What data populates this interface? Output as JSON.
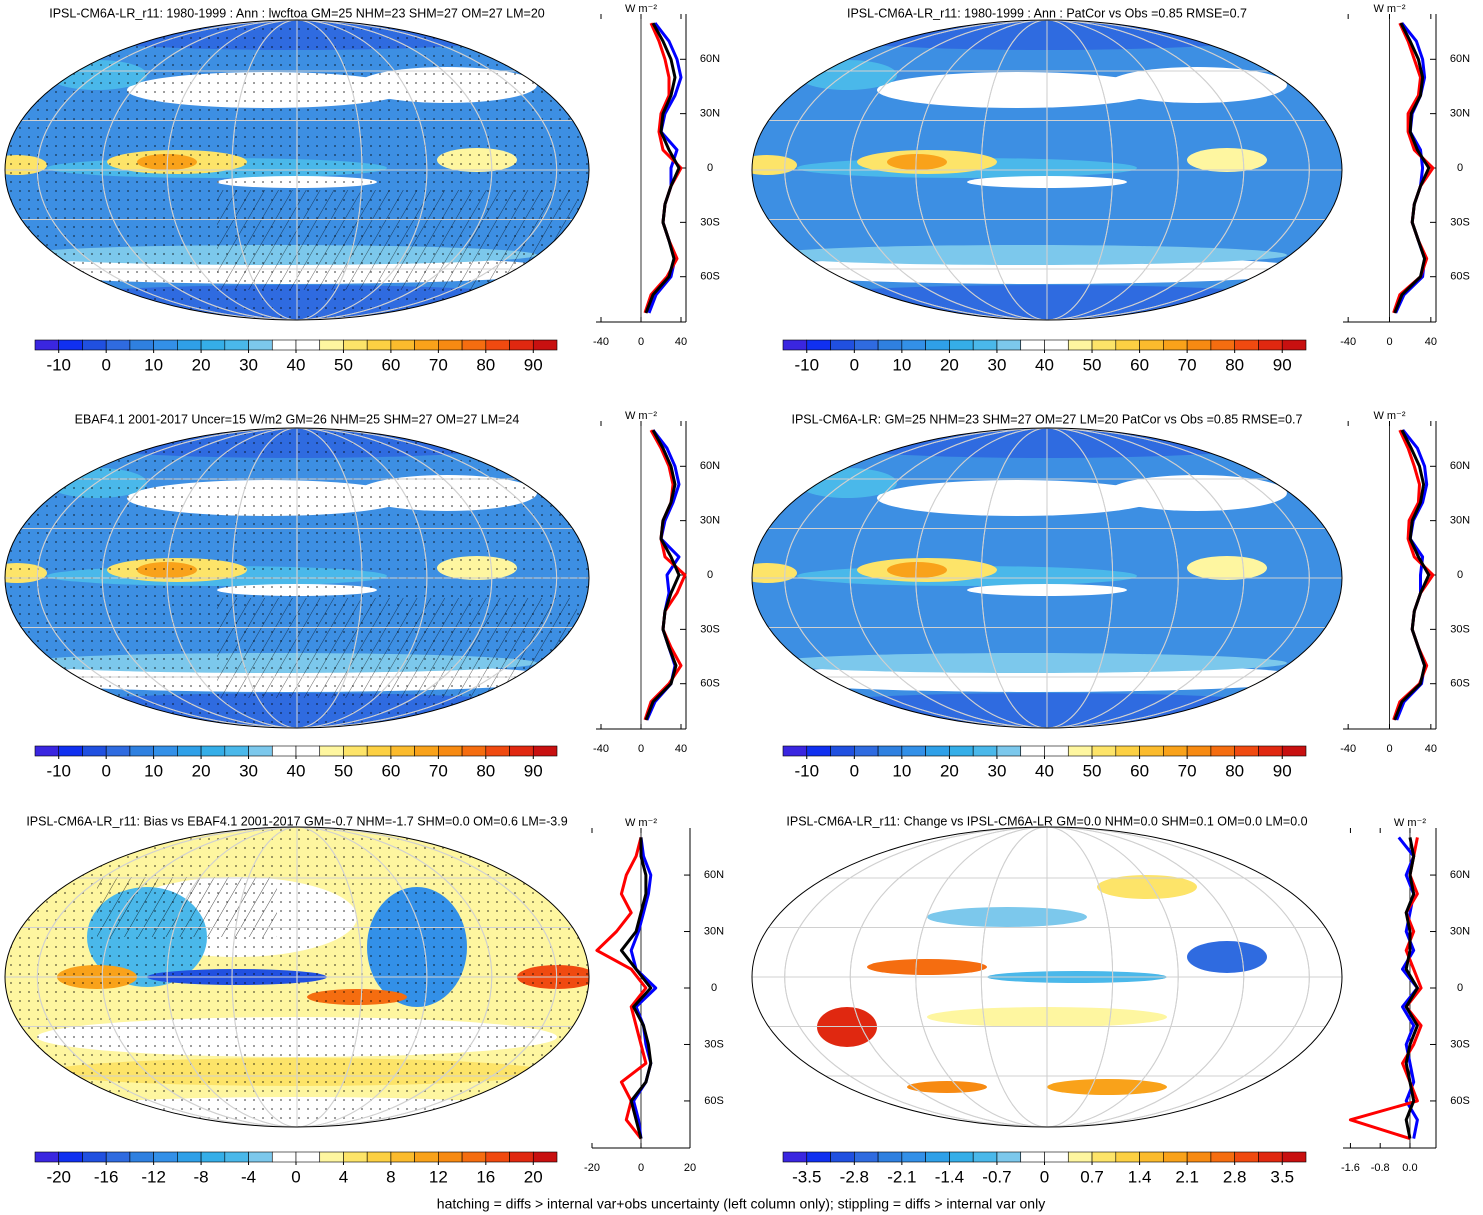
{
  "chart_data": [
    {
      "type": "map",
      "title": "IPSL-CM6A-LR_r11: 1980-1999 : Ann : lwcftoa GM=25 NHM=23 SHM=27 OM=27 LM=20",
      "style": "climate",
      "colorbar": {
        "xlim": [
          -15,
          95
        ],
        "xticks": [
          -10,
          0,
          10,
          20,
          30,
          40,
          50,
          60,
          70,
          80,
          90
        ],
        "colors": [
          "#3a26e0",
          "#1030f0",
          "#2050e0",
          "#2f6be0",
          "#2f80e0",
          "#3390e8",
          "#2fa0e8",
          "#35aee8",
          "#4ab8ea",
          "#7cc8ec",
          "#ffffff",
          "#ffffff",
          "#fef6a0",
          "#fde469",
          "#fcd043",
          "#fbbb2d",
          "#f9a21a",
          "#f78a12",
          "#f56d10",
          "#f04a10",
          "#e02810",
          "#c81010"
        ]
      },
      "zonal": {
        "type": "line",
        "xlabel": "W m⁻²",
        "xlim": [
          -45,
          45
        ],
        "xticks": [
          -40,
          0,
          40
        ],
        "ylim": [
          -85,
          85
        ],
        "yticks": [
          {
            "value": 60,
            "label": "60N"
          },
          {
            "value": 30,
            "label": "30N"
          },
          0,
          {
            "value": -30,
            "label": "30S"
          },
          {
            "value": -60,
            "label": "60S"
          }
        ],
        "lat": [
          -80,
          -70,
          -60,
          -50,
          -40,
          -30,
          -20,
          -10,
          0,
          10,
          20,
          30,
          40,
          50,
          60,
          70,
          80
        ],
        "series": [
          {
            "color": "#0000ff",
            "values": [
              8,
              15,
              30,
              34,
              28,
              22,
              24,
              30,
              30,
              36,
              20,
              24,
              34,
              40,
              36,
              28,
              14
            ]
          },
          {
            "color": "#ff0000",
            "values": [
              4,
              10,
              26,
              36,
              28,
              22,
              24,
              30,
              40,
              22,
              18,
              20,
              28,
              28,
              24,
              18,
              10
            ]
          },
          {
            "color": "#000000",
            "values": [
              5,
              12,
              28,
              33,
              28,
              22,
              24,
              30,
              38,
              28,
              20,
              22,
              30,
              34,
              30,
              22,
              12
            ]
          }
        ]
      }
    },
    {
      "type": "map",
      "title": "IPSL-CM6A-LR_r11: 1980-1999 : Ann : PatCor vs Obs =0.85 RMSE=0.7",
      "style": "climate",
      "colorbar": {
        "xlim": [
          -15,
          95
        ],
        "xticks": [
          -10,
          0,
          10,
          20,
          30,
          40,
          50,
          60,
          70,
          80,
          90
        ],
        "colors": [
          "#3a26e0",
          "#1030f0",
          "#2050e0",
          "#2f6be0",
          "#2f80e0",
          "#3390e8",
          "#2fa0e8",
          "#35aee8",
          "#4ab8ea",
          "#7cc8ec",
          "#ffffff",
          "#ffffff",
          "#fef6a0",
          "#fde469",
          "#fcd043",
          "#fbbb2d",
          "#f9a21a",
          "#f78a12",
          "#f56d10",
          "#f04a10",
          "#e02810",
          "#c81010"
        ]
      },
      "zonal": {
        "type": "line",
        "xlabel": "W m⁻²",
        "xlim": [
          -45,
          45
        ],
        "xticks": [
          -40,
          0,
          40
        ],
        "ylim": [
          -85,
          85
        ],
        "yticks": [
          {
            "value": 60,
            "label": "60N"
          },
          {
            "value": 30,
            "label": "30N"
          },
          0,
          {
            "value": -30,
            "label": "30S"
          },
          {
            "value": -60,
            "label": "60S"
          }
        ],
        "lat": [
          -80,
          -70,
          -60,
          -50,
          -40,
          -30,
          -20,
          -10,
          0,
          10,
          20,
          30,
          40,
          50,
          60,
          70,
          80
        ],
        "series": [
          {
            "color": "#0000ff",
            "values": [
              6,
              14,
              32,
              34,
              28,
              22,
              24,
              30,
              32,
              30,
              20,
              22,
              30,
              34,
              32,
              26,
              12
            ]
          },
          {
            "color": "#ff0000",
            "values": [
              4,
              10,
              30,
              36,
              28,
              22,
              24,
              30,
              42,
              24,
              18,
              18,
              28,
              30,
              24,
              18,
              10
            ]
          },
          {
            "color": "#000000",
            "values": [
              5,
              12,
              30,
              34,
              28,
              22,
              24,
              30,
              38,
              27,
              20,
              21,
              30,
              32,
              28,
              20,
              11
            ]
          }
        ]
      }
    },
    {
      "type": "map",
      "title": "EBAF4.1 2001-2017 Uncer=15 W/m2 GM=26 NHM=25 SHM=27 OM=27 LM=24",
      "style": "climate",
      "colorbar": {
        "xlim": [
          -15,
          95
        ],
        "xticks": [
          -10,
          0,
          10,
          20,
          30,
          40,
          50,
          60,
          70,
          80,
          90
        ],
        "colors": [
          "#3a26e0",
          "#1030f0",
          "#2050e0",
          "#2f6be0",
          "#2f80e0",
          "#3390e8",
          "#2fa0e8",
          "#35aee8",
          "#4ab8ea",
          "#7cc8ec",
          "#ffffff",
          "#ffffff",
          "#fef6a0",
          "#fde469",
          "#fcd043",
          "#fbbb2d",
          "#f9a21a",
          "#f78a12",
          "#f56d10",
          "#f04a10",
          "#e02810",
          "#c81010"
        ]
      },
      "zonal": {
        "type": "line",
        "xlabel": "W m⁻²",
        "xlim": [
          -45,
          45
        ],
        "xticks": [
          -40,
          0,
          40
        ],
        "ylim": [
          -85,
          85
        ],
        "yticks": [
          {
            "value": 60,
            "label": "60N"
          },
          {
            "value": 30,
            "label": "30N"
          },
          0,
          {
            "value": -30,
            "label": "30S"
          },
          {
            "value": -60,
            "label": "60S"
          }
        ],
        "lat": [
          -80,
          -70,
          -60,
          -50,
          -40,
          -30,
          -20,
          -10,
          0,
          10,
          20,
          30,
          40,
          50,
          60,
          70,
          80
        ],
        "series": [
          {
            "color": "#0000ff",
            "values": [
              6,
              14,
              30,
              34,
              28,
              22,
              24,
              28,
              26,
              38,
              20,
              24,
              32,
              38,
              34,
              26,
              12
            ]
          },
          {
            "color": "#ff0000",
            "values": [
              4,
              10,
              28,
              40,
              30,
              22,
              24,
              36,
              44,
              24,
              20,
              22,
              30,
              32,
              28,
              20,
              10
            ]
          },
          {
            "color": "#000000",
            "values": [
              5,
              12,
              30,
              35,
              28,
              22,
              24,
              30,
              38,
              30,
              20,
              22,
              30,
              34,
              30,
              22,
              12
            ]
          }
        ]
      }
    },
    {
      "type": "map",
      "title": "IPSL-CM6A-LR: GM=25 NHM=23 SHM=27 OM=27 LM=20 PatCor vs Obs =0.85 RMSE=0.7",
      "style": "climate",
      "colorbar": {
        "xlim": [
          -15,
          95
        ],
        "xticks": [
          -10,
          0,
          10,
          20,
          30,
          40,
          50,
          60,
          70,
          80,
          90
        ],
        "colors": [
          "#3a26e0",
          "#1030f0",
          "#2050e0",
          "#2f6be0",
          "#2f80e0",
          "#3390e8",
          "#2fa0e8",
          "#35aee8",
          "#4ab8ea",
          "#7cc8ec",
          "#ffffff",
          "#ffffff",
          "#fef6a0",
          "#fde469",
          "#fcd043",
          "#fbbb2d",
          "#f9a21a",
          "#f78a12",
          "#f56d10",
          "#f04a10",
          "#e02810",
          "#c81010"
        ]
      },
      "zonal": {
        "type": "line",
        "xlabel": "W m⁻²",
        "xlim": [
          -45,
          45
        ],
        "xticks": [
          -40,
          0,
          40
        ],
        "ylim": [
          -85,
          85
        ],
        "yticks": [
          {
            "value": 60,
            "label": "60N"
          },
          {
            "value": 30,
            "label": "30N"
          },
          0,
          {
            "value": -30,
            "label": "30S"
          },
          {
            "value": -60,
            "label": "60S"
          }
        ],
        "lat": [
          -80,
          -70,
          -60,
          -50,
          -40,
          -30,
          -20,
          -10,
          0,
          10,
          20,
          30,
          40,
          50,
          60,
          70,
          80
        ],
        "series": [
          {
            "color": "#0000ff",
            "values": [
              7,
              14,
              31,
              34,
              28,
              22,
              24,
              30,
              30,
              32,
              20,
              23,
              32,
              36,
              34,
              27,
              13
            ]
          },
          {
            "color": "#ff0000",
            "values": [
              4,
              10,
              29,
              36,
              28,
              22,
              24,
              30,
              42,
              24,
              18,
              19,
              28,
              29,
              24,
              18,
              10
            ]
          },
          {
            "color": "#000000",
            "values": [
              5,
              12,
              30,
              34,
              28,
              22,
              24,
              30,
              38,
              28,
              20,
              22,
              30,
              33,
              29,
              21,
              12
            ]
          }
        ]
      }
    },
    {
      "type": "map",
      "title": "IPSL-CM6A-LR_r11: Bias vs EBAF4.1 2001-2017 GM=-0.7 NHM=-1.7 SHM=0.0 OM=0.6 LM=-3.9",
      "style": "bias",
      "colorbar": {
        "xlim": [
          -22,
          22
        ],
        "xticks": [
          -20,
          -16,
          -12,
          -8,
          -4,
          0,
          4,
          8,
          12,
          16,
          20
        ],
        "colors": [
          "#3a26e0",
          "#1030f0",
          "#2050e0",
          "#2f6be0",
          "#2f80e0",
          "#3390e8",
          "#2fa0e8",
          "#35aee8",
          "#4ab8ea",
          "#7cc8ec",
          "#ffffff",
          "#ffffff",
          "#fef6a0",
          "#fde469",
          "#fcd043",
          "#fbbb2d",
          "#f9a21a",
          "#f78a12",
          "#f56d10",
          "#f04a10",
          "#e02810",
          "#c81010"
        ]
      },
      "zonal": {
        "type": "line",
        "xlabel": "W m⁻²",
        "xlim": [
          -20,
          20
        ],
        "xticks": [
          -20,
          0,
          20
        ],
        "ylim": [
          -85,
          85
        ],
        "yticks": [
          {
            "value": 60,
            "label": "60N"
          },
          {
            "value": 30,
            "label": "30N"
          },
          0,
          {
            "value": -30,
            "label": "30S"
          },
          {
            "value": -60,
            "label": "60S"
          }
        ],
        "lat": [
          -80,
          -70,
          -60,
          -50,
          -40,
          -30,
          -20,
          -10,
          0,
          10,
          20,
          30,
          40,
          50,
          60,
          70,
          80
        ],
        "series": [
          {
            "color": "#0000ff",
            "values": [
              0,
              -1,
              -3,
              2,
              4,
              2,
              1,
              -2,
              6,
              -2,
              -4,
              -1,
              1,
              3,
              4,
              1,
              0
            ]
          },
          {
            "color": "#ff0000",
            "values": [
              0,
              -6,
              -4,
              -8,
              2,
              0,
              -2,
              -4,
              2,
              -4,
              -18,
              -10,
              -4,
              -8,
              -6,
              -2,
              0
            ]
          },
          {
            "color": "#000000",
            "values": [
              0,
              -2,
              -4,
              2,
              4,
              3,
              1,
              -3,
              4,
              -2,
              -8,
              -2,
              0,
              2,
              2,
              0,
              0
            ]
          }
        ]
      }
    },
    {
      "type": "map",
      "title": "IPSL-CM6A-LR_r11: Change vs IPSL-CM6A-LR GM=0.0 NHM=0.0 SHM=0.1 OM=0.0 LM=0.0",
      "style": "change",
      "colorbar": {
        "xlim": [
          -3.85,
          3.85
        ],
        "xticks": [
          -3.5,
          -2.8,
          -2.1,
          -1.4,
          -0.7,
          0,
          0.7,
          1.4,
          2.1,
          2.8,
          3.5
        ],
        "colors": [
          "#3a26e0",
          "#1030f0",
          "#2050e0",
          "#2f6be0",
          "#2f80e0",
          "#3390e8",
          "#2fa0e8",
          "#35aee8",
          "#4ab8ea",
          "#7cc8ec",
          "#ffffff",
          "#ffffff",
          "#fef6a0",
          "#fde469",
          "#fcd043",
          "#fbbb2d",
          "#f9a21a",
          "#f78a12",
          "#f56d10",
          "#f04a10",
          "#e02810",
          "#c81010"
        ]
      },
      "zonal": {
        "type": "line",
        "xlabel": "W m⁻²",
        "xlim": [
          -1.8,
          0.7
        ],
        "xticks": [
          -1.6,
          -0.8,
          {
            "value": 0,
            "label": "0.0"
          }
        ],
        "ylim": [
          -85,
          85
        ],
        "yticks": [
          {
            "value": 60,
            "label": "60N"
          },
          {
            "value": 30,
            "label": "30N"
          },
          0,
          {
            "value": -30,
            "label": "30S"
          },
          {
            "value": -60,
            "label": "60S"
          }
        ],
        "lat": [
          -80,
          -70,
          -60,
          -50,
          -40,
          -30,
          -20,
          -10,
          0,
          10,
          20,
          30,
          40,
          50,
          60,
          70,
          80
        ],
        "series": [
          {
            "color": "#0000ff",
            "values": [
              0.1,
              0.2,
              -0.1,
              0.1,
              0.0,
              -0.1,
              0.1,
              -0.2,
              0.2,
              -0.2,
              0.1,
              -0.1,
              0.0,
              0.1,
              -0.1,
              0.1,
              -0.3
            ]
          },
          {
            "color": "#ff0000",
            "values": [
              0.0,
              -1.6,
              0.2,
              0.0,
              -0.2,
              0.1,
              0.3,
              -0.1,
              0.3,
              0.1,
              -0.1,
              0.1,
              -0.1,
              0.2,
              0.0,
              0.1,
              0.2
            ]
          },
          {
            "color": "#000000",
            "values": [
              0.0,
              -0.1,
              0.1,
              0.0,
              -0.1,
              0.0,
              0.2,
              -0.1,
              0.2,
              -0.1,
              0.0,
              0.0,
              -0.1,
              0.1,
              0.0,
              0.1,
              0.0
            ]
          }
        ]
      }
    }
  ],
  "footnote": "hatching = diffs > internal var+obs uncertainty (left column only); stippling = diffs > internal var only"
}
